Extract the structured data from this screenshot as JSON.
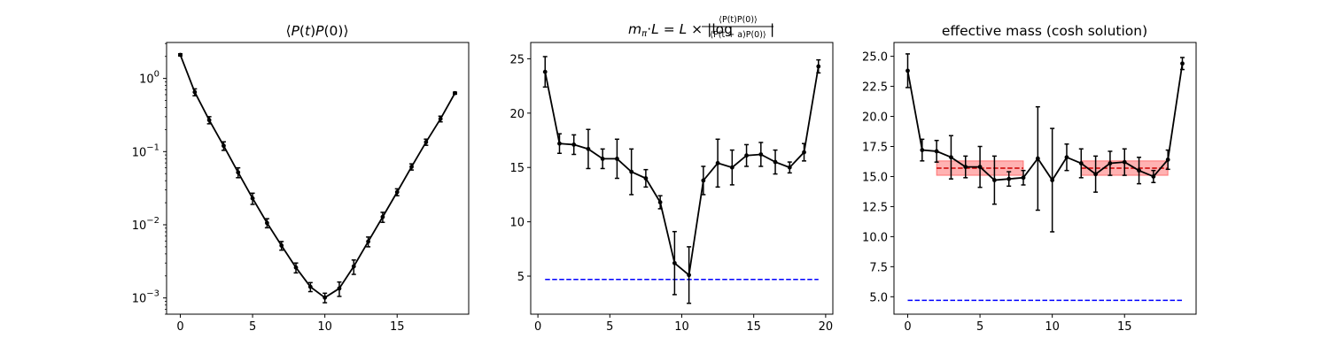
{
  "chart_data": [
    {
      "type": "line",
      "title": "⟨P(t)P(0)⟩",
      "xlabel": "",
      "ylabel": "",
      "yscale": "log",
      "xlim": [
        -0.95,
        19.95
      ],
      "ylim": [
        0.0006,
        3.1
      ],
      "xticks": [
        0,
        5,
        10,
        15
      ],
      "yticks": [
        {
          "value": 1,
          "label": "10^0"
        },
        {
          "value": 0.1,
          "label": "10^-1"
        },
        {
          "value": 0.01,
          "label": "10^-2"
        },
        {
          "value": 0.001,
          "label": "10^-3"
        }
      ],
      "series": [
        {
          "color": "#000000",
          "x": [
            0,
            1,
            2,
            3,
            4,
            5,
            6,
            7,
            8,
            9,
            10,
            11,
            12,
            13,
            14,
            15,
            16,
            17,
            18,
            19
          ],
          "y": [
            2.1,
            0.65,
            0.27,
            0.12,
            0.052,
            0.023,
            0.0106,
            0.0052,
            0.0026,
            0.00142,
            0.00101,
            0.00135,
            0.0027,
            0.0059,
            0.0128,
            0.028,
            0.062,
            0.135,
            0.28,
            0.63
          ],
          "yerr": [
            0.07,
            0.07,
            0.03,
            0.016,
            0.008,
            0.004,
            0.0015,
            0.0007,
            0.0004,
            0.0002,
            0.00015,
            0.0003,
            0.0006,
            0.0009,
            0.002,
            0.003,
            0.006,
            0.013,
            0.025,
            0.02
          ]
        }
      ],
      "hlines": [],
      "bands": []
    },
    {
      "type": "line",
      "title": "m_π·L = L × |log ⟨P(t)P(0)⟩ / ⟨P(t+a)P(0)⟩|",
      "xlabel": "",
      "ylabel": "",
      "xlim": [
        -0.5,
        20.5
      ],
      "ylim": [
        1.5,
        26.5
      ],
      "xticks": [
        0,
        5,
        10,
        15,
        20
      ],
      "yticks": [
        5,
        10,
        15,
        20,
        25
      ],
      "series": [
        {
          "color": "#000000",
          "x": [
            0.5,
            1.5,
            2.5,
            3.5,
            4.5,
            5.5,
            6.5,
            7.5,
            8.5,
            9.5,
            10.5,
            11.5,
            12.5,
            13.5,
            14.5,
            15.5,
            16.5,
            17.5,
            18.5,
            19.5
          ],
          "y": [
            23.8,
            17.2,
            17.1,
            16.7,
            15.8,
            15.8,
            14.6,
            14.0,
            11.8,
            6.2,
            5.1,
            13.8,
            15.4,
            15.0,
            16.1,
            16.2,
            15.5,
            15.0,
            16.4,
            24.3
          ],
          "yerr": [
            1.4,
            0.9,
            0.9,
            1.8,
            0.9,
            1.8,
            2.1,
            0.8,
            0.6,
            2.9,
            2.6,
            1.3,
            2.2,
            1.6,
            1.0,
            1.1,
            1.1,
            0.5,
            0.8,
            0.6
          ]
        }
      ],
      "hlines": [
        {
          "y": 4.7,
          "x": [
            0.5,
            19.5
          ],
          "color": "#0000ff",
          "style": "dashed"
        }
      ],
      "bands": []
    },
    {
      "type": "line",
      "title": "effective mass (cosh solution)",
      "xlabel": "",
      "ylabel": "",
      "xlim": [
        -0.95,
        19.95
      ],
      "ylim": [
        3.55,
        26.15
      ],
      "xticks": [
        0,
        5,
        10,
        15
      ],
      "yticks": [
        5.0,
        7.5,
        10.0,
        12.5,
        15.0,
        17.5,
        20.0,
        22.5,
        25.0
      ],
      "series": [
        {
          "color": "#000000",
          "x": [
            0,
            1,
            2,
            3,
            4,
            5,
            6,
            7,
            8,
            9,
            10,
            11,
            12,
            13,
            14,
            15,
            16,
            17,
            18,
            19
          ],
          "y": [
            23.8,
            17.2,
            17.1,
            16.6,
            15.8,
            15.8,
            14.7,
            14.8,
            14.9,
            16.5,
            14.7,
            16.6,
            16.1,
            15.2,
            16.1,
            16.2,
            15.5,
            15.0,
            16.4,
            24.4
          ],
          "yerr": [
            1.4,
            0.9,
            0.9,
            1.8,
            0.9,
            1.7,
            2.0,
            0.6,
            0.6,
            4.3,
            4.3,
            1.1,
            1.2,
            1.5,
            1.0,
            1.1,
            1.1,
            0.5,
            0.8,
            0.5
          ]
        }
      ],
      "hlines": [
        {
          "y": 4.7,
          "x": [
            0,
            19
          ],
          "color": "#0000ff",
          "style": "dashed"
        },
        {
          "y": 15.7,
          "x": [
            2,
            8
          ],
          "color": "#cc0000",
          "style": "dashed"
        },
        {
          "y": 15.7,
          "x": [
            12,
            18
          ],
          "color": "#cc0000",
          "style": "dashed"
        }
      ],
      "bands": [
        {
          "x": [
            2,
            8
          ],
          "y": [
            15.1,
            16.3
          ],
          "color": "#ff0000",
          "opacity": 0.3
        },
        {
          "x": [
            12,
            18
          ],
          "y": [
            15.1,
            16.3
          ],
          "color": "#ff0000",
          "opacity": 0.3
        }
      ]
    }
  ]
}
